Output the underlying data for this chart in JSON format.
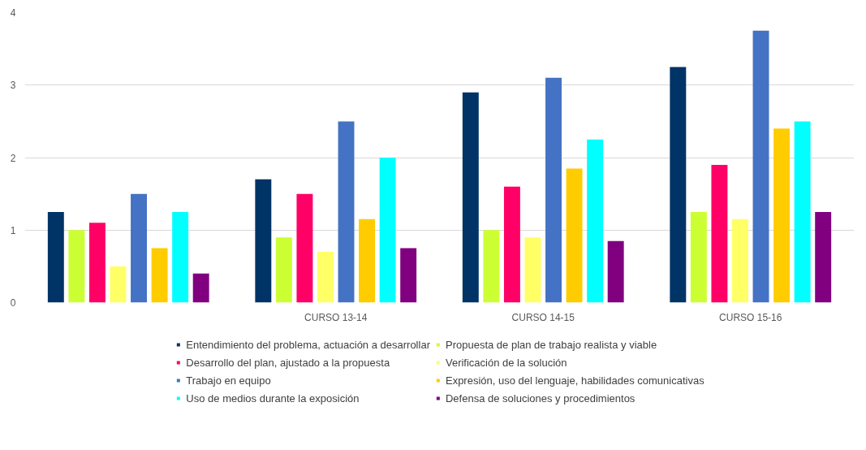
{
  "chart_data": {
    "type": "bar",
    "categories": [
      null,
      "CURSO 13-14",
      "CURSO 14-15",
      "CURSO 15-16"
    ],
    "series": [
      {
        "name": "Entendimiento del problema, actuación a desarrollar",
        "color": "#003366",
        "values": [
          1.25,
          1.7,
          2.9,
          3.25
        ]
      },
      {
        "name": "Propuesta de plan de trabajo realista y viable",
        "color": "#ccff33",
        "values": [
          1.0,
          0.9,
          1.0,
          1.25
        ]
      },
      {
        "name": "Desarrollo del plan, ajustado a la propuesta",
        "color": "#ff0066",
        "values": [
          1.1,
          1.5,
          1.6,
          1.9
        ]
      },
      {
        "name": "Verificación de la solución",
        "color": "#ffff66",
        "values": [
          0.5,
          0.7,
          0.9,
          1.15
        ]
      },
      {
        "name": "Trabajo en equipo",
        "color": "#4472c4",
        "values": [
          1.5,
          2.5,
          3.1,
          3.75
        ]
      },
      {
        "name": "Expresión, uso del lenguaje, habilidades comunicativas",
        "color": "#ffcc00",
        "values": [
          0.75,
          1.15,
          1.85,
          2.4
        ]
      },
      {
        "name": "Uso de medios durante la exposición",
        "color": "#00ffff",
        "values": [
          1.25,
          2.0,
          2.25,
          2.5
        ]
      },
      {
        "name": "Defensa de soluciones y procedimientos",
        "color": "#800080",
        "values": [
          0.4,
          0.75,
          0.85,
          1.25
        ]
      }
    ],
    "ylim": [
      0,
      4
    ],
    "yticks": [
      0,
      1,
      2,
      3,
      4
    ],
    "grid": "y",
    "legend": "bottom"
  }
}
